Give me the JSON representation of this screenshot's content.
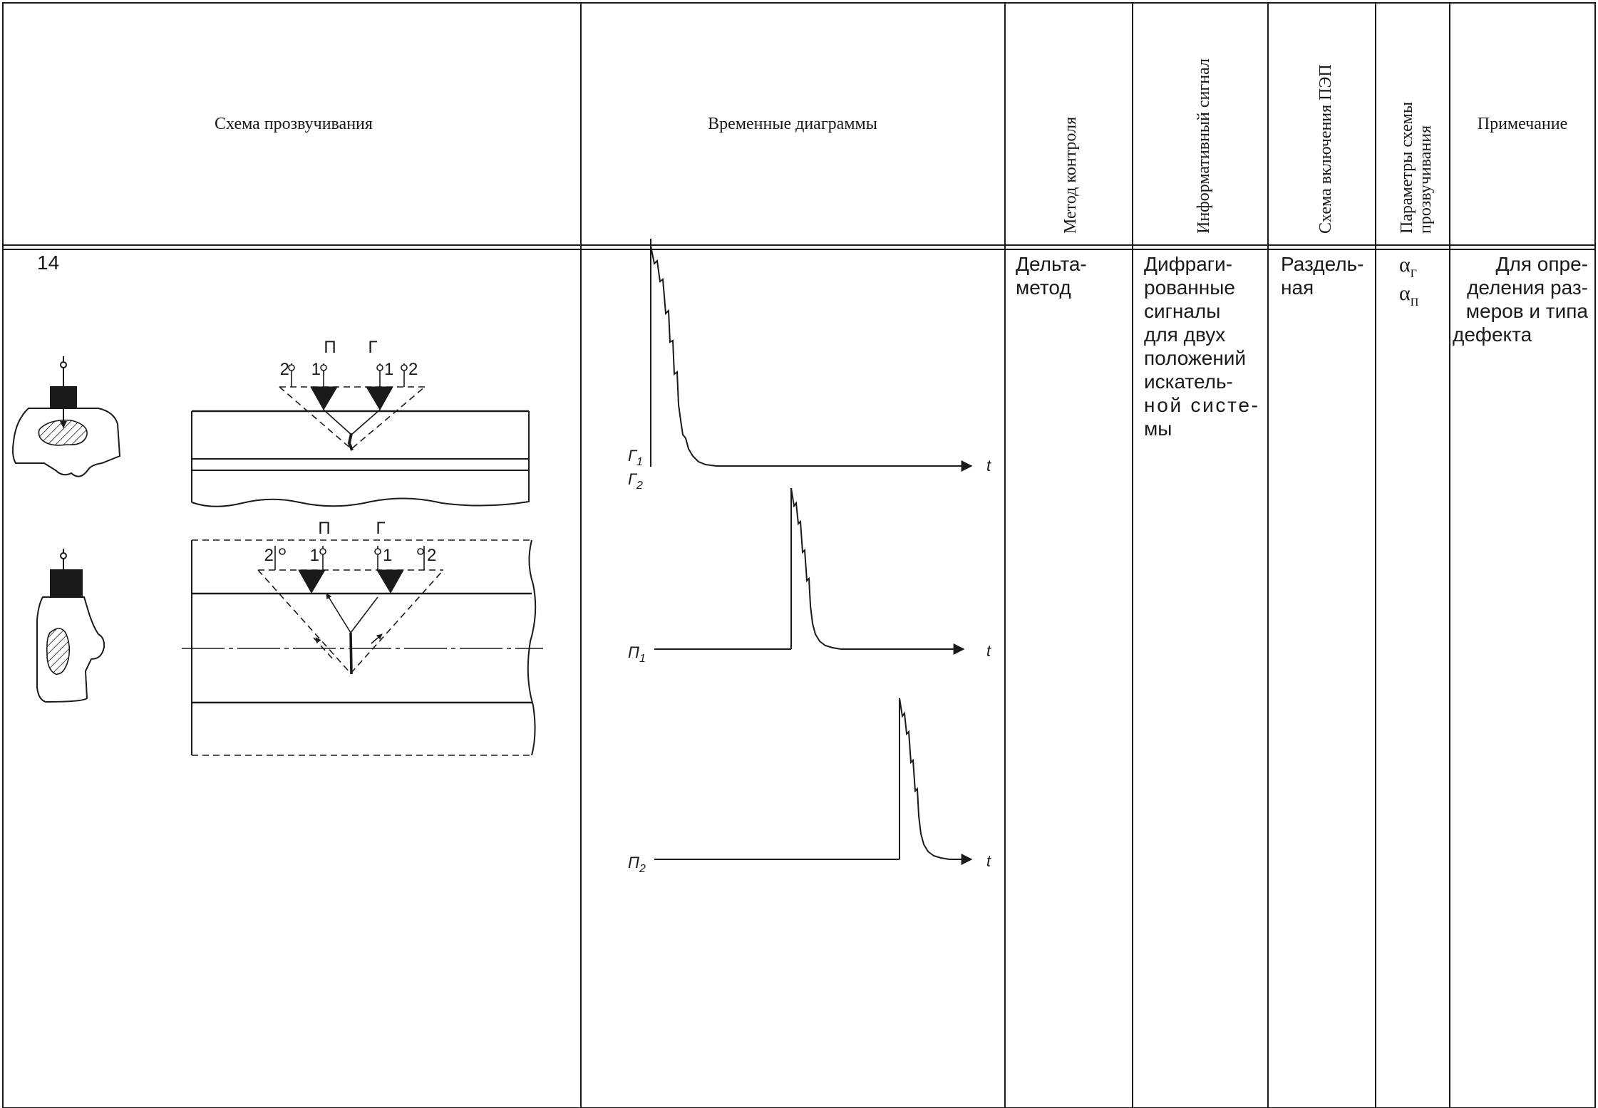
{
  "table": {
    "headers": {
      "scheme": "Схема прозвучивания",
      "timing": "Временные диаграммы",
      "method": "Метод контроля",
      "signal": "Информативный сигнал",
      "connection": "Схема включения ПЭП",
      "params_line1": "Параметры схемы",
      "params_line2": "прозвучивания",
      "note": "Примечание"
    },
    "row": {
      "number": "14",
      "method_lines": [
        "Дельта-",
        "метод"
      ],
      "signal_lines": [
        "Дифраги-",
        "рованные",
        "сигналы",
        "для двух",
        "положений",
        "искатель-",
        "ной систе-",
        "мы"
      ],
      "connection_lines": [
        "Раздель-",
        "ная"
      ],
      "params": [
        {
          "symbol": "α",
          "sub": "Г"
        },
        {
          "symbol": "α",
          "sub": "П"
        }
      ],
      "note_lines": [
        "Для опре-",
        "деления раз-",
        "меров и типа",
        "дефекта"
      ]
    }
  },
  "scheme_labels": {
    "receiver": "П",
    "generator": "Г",
    "pos_1": "1",
    "pos_2": "2"
  },
  "timing_diagrams": {
    "axis_label": "t",
    "traces": [
      {
        "label": "Г",
        "sub": "1",
        "label2": "Г",
        "sub2": "2"
      },
      {
        "label": "П",
        "sub": "1"
      },
      {
        "label": "П",
        "sub": "2"
      }
    ]
  }
}
